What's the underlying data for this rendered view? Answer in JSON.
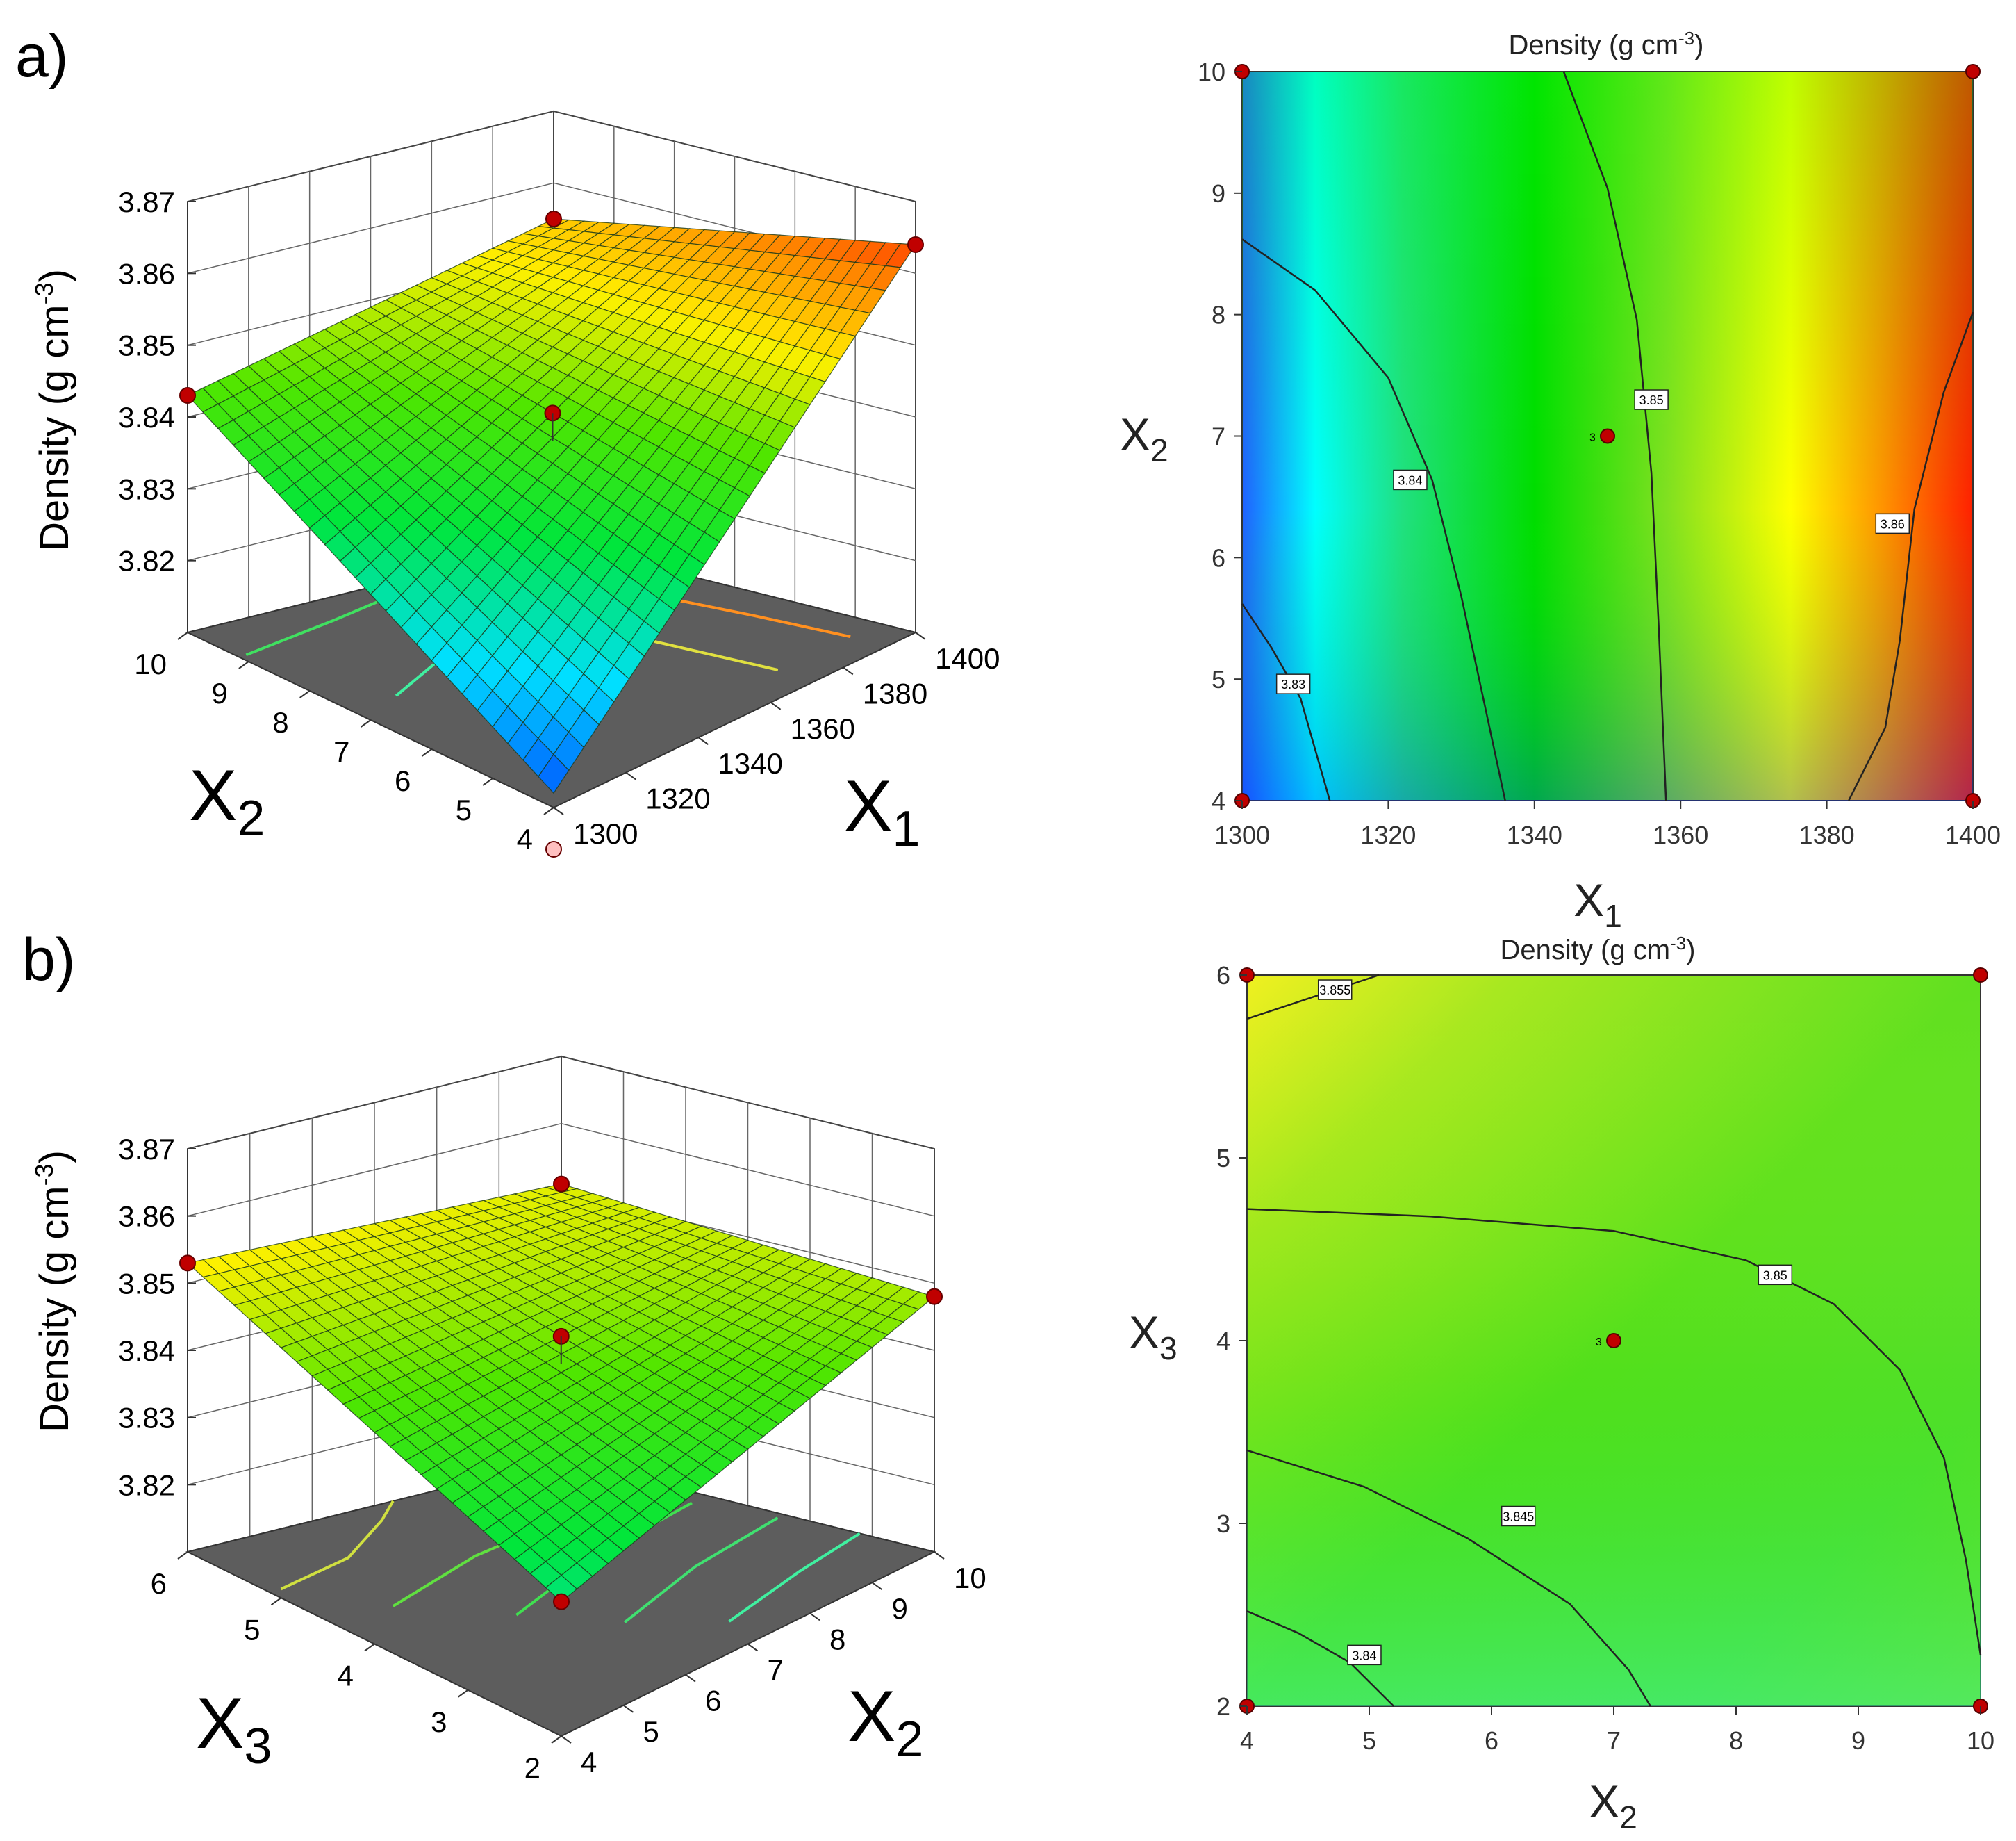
{
  "panels": [
    {
      "label": "a)",
      "surface": {
        "zlabel": "Density (g cm",
        "zlabel_sup": "-3",
        "zlabel_close": ")",
        "z_ticks": [
          "3.87",
          "3.86",
          "3.85",
          "3.84",
          "3.83",
          "3.82"
        ],
        "left_axis": {
          "name": "X",
          "sub": "2",
          "ticks": [
            "10",
            "9",
            "8",
            "7",
            "6",
            "5",
            "4"
          ]
        },
        "right_axis": {
          "name": "X",
          "sub": "1",
          "ticks": [
            "1300",
            "1320",
            "1340",
            "1360",
            "1380",
            "1400"
          ]
        },
        "corners": {
          "front": 3.812,
          "left": 3.843,
          "right": 3.864,
          "back": 3.855
        },
        "z_range": [
          3.81,
          3.87
        ]
      },
      "contour": {
        "title": "Density (g cm",
        "title_sup": "-3",
        "title_close": ")",
        "xlabel": {
          "name": "X",
          "sub": "1"
        },
        "ylabel": {
          "name": "X",
          "sub": "2"
        },
        "x_ticks": [
          "1300",
          "1320",
          "1340",
          "1360",
          "1380",
          "1400"
        ],
        "y_ticks": [
          "10",
          "9",
          "8",
          "7",
          "6",
          "5",
          "4"
        ],
        "contour_labels": [
          "3.83",
          "3.84",
          "3.85",
          "3.86"
        ],
        "center_label": "3"
      }
    },
    {
      "label": "b)",
      "surface": {
        "zlabel": "Density (g cm",
        "zlabel_sup": "-3",
        "zlabel_close": ")",
        "z_ticks": [
          "3.87",
          "3.86",
          "3.85",
          "3.84",
          "3.83",
          "3.82"
        ],
        "left_axis": {
          "name": "X",
          "sub": "3",
          "ticks": [
            "6",
            "5",
            "4",
            "3",
            "2"
          ]
        },
        "right_axis": {
          "name": "X",
          "sub": "2",
          "ticks": [
            "4",
            "5",
            "6",
            "7",
            "8",
            "9",
            "10"
          ]
        },
        "corners": {
          "front": 3.83,
          "left": 3.853,
          "right": 3.848,
          "back": 3.851
        },
        "z_range": [
          3.81,
          3.87
        ]
      },
      "contour": {
        "title": "Density (g cm",
        "title_sup": "-3",
        "title_close": ")",
        "xlabel": {
          "name": "X",
          "sub": "2"
        },
        "ylabel": {
          "name": "X",
          "sub": "3"
        },
        "x_ticks": [
          "4",
          "5",
          "6",
          "7",
          "8",
          "9",
          "10"
        ],
        "y_ticks": [
          "6",
          "5",
          "4",
          "3",
          "2"
        ],
        "contour_labels": [
          "3.855",
          "3.85",
          "3.845",
          "3.84"
        ],
        "center_label": "3"
      }
    }
  ],
  "chart_data": [
    {
      "type": "surface",
      "title": "",
      "x": {
        "name": "X1",
        "range": [
          1300,
          1400
        ]
      },
      "y": {
        "name": "X2",
        "range": [
          4,
          10
        ]
      },
      "zlabel": "Density (g cm-3)",
      "zlim": [
        3.81,
        3.87
      ],
      "corner_values": [
        {
          "X1": 1300,
          "X2": 4,
          "density": 3.812
        },
        {
          "X1": 1300,
          "X2": 10,
          "density": 3.843
        },
        {
          "X1": 1400,
          "X2": 4,
          "density": 3.864
        },
        {
          "X1": 1400,
          "X2": 10,
          "density": 3.855
        }
      ],
      "design_points_shown": true
    },
    {
      "type": "contour",
      "title": "Density (g cm-3)",
      "xlabel": "X1",
      "ylabel": "X2",
      "xlim": [
        1300,
        1400
      ],
      "ylim": [
        4,
        10
      ],
      "contour_levels": [
        3.83,
        3.84,
        3.85,
        3.86
      ],
      "colors": {
        "low": "#0050ff",
        "mid": "#00e000",
        "high": "#ff2000"
      }
    },
    {
      "type": "surface",
      "title": "",
      "x": {
        "name": "X2",
        "range": [
          4,
          10
        ]
      },
      "y": {
        "name": "X3",
        "range": [
          2,
          6
        ]
      },
      "zlabel": "Density (g cm-3)",
      "zlim": [
        3.81,
        3.87
      ],
      "corner_values": [
        {
          "X2": 4,
          "X3": 2,
          "density": 3.83
        },
        {
          "X2": 4,
          "X3": 6,
          "density": 3.853
        },
        {
          "X2": 10,
          "X3": 2,
          "density": 3.848
        },
        {
          "X2": 10,
          "X3": 6,
          "density": 3.851
        }
      ],
      "design_points_shown": true
    },
    {
      "type": "contour",
      "title": "Density (g cm-3)",
      "xlabel": "X2",
      "ylabel": "X3",
      "xlim": [
        4,
        10
      ],
      "ylim": [
        2,
        6
      ],
      "contour_levels": [
        3.84,
        3.845,
        3.85,
        3.855
      ],
      "colors": {
        "low": "#30f070",
        "mid": "#40d020",
        "high": "#f0f010"
      }
    }
  ]
}
